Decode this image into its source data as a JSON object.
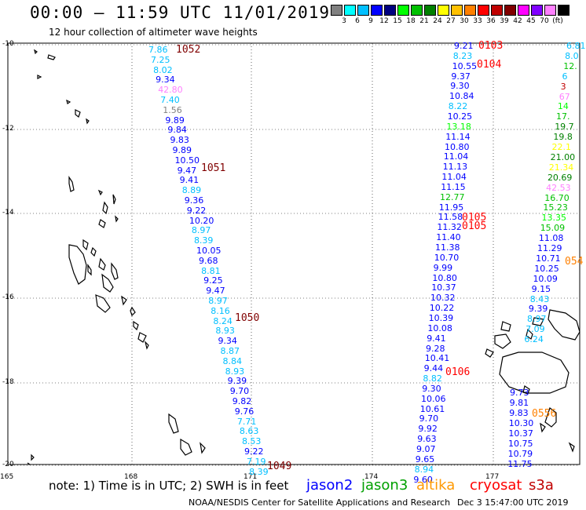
{
  "header": {
    "title": "00:00 – 11:59 UTC 11/01/2019",
    "subtitle": "12 hour collection of altimeter wave heights"
  },
  "colorbar": {
    "colors": [
      "#808080",
      "#00ffff",
      "#00bfff",
      "#0000ff",
      "#000080",
      "#00ff00",
      "#00c000",
      "#008000",
      "#ffff00",
      "#ffc000",
      "#ff8000",
      "#ff0000",
      "#c00000",
      "#800000",
      "#ff00ff",
      "#8000ff",
      "#ff80ff",
      "#000000"
    ],
    "labels": [
      "3",
      "6",
      "9",
      "12",
      "15",
      "18",
      "21",
      "24",
      "27",
      "30",
      "33",
      "36",
      "39",
      "42",
      "45",
      "70",
      "(ft)"
    ]
  },
  "axes": {
    "lat_labels": [
      "-10",
      "-12",
      "-14",
      "-16",
      "-18",
      "-20"
    ],
    "lon_labels": [
      "165",
      "168",
      "171",
      "174",
      "177"
    ]
  },
  "passes": [
    {
      "id": "1052",
      "color": "#800000"
    },
    {
      "id": "1051",
      "color": "#800000"
    },
    {
      "id": "1050",
      "color": "#800000"
    },
    {
      "id": "1049",
      "color": "#800000"
    },
    {
      "id": "0103",
      "color": "#ff0000"
    },
    {
      "id": "0104",
      "color": "#ff0000"
    },
    {
      "id": "0105",
      "color": "#ff0000"
    },
    {
      "id": "0105",
      "color": "#ff0000"
    },
    {
      "id": "0106",
      "color": "#ff0000"
    },
    {
      "id": "0556",
      "color": "#ff8000"
    },
    {
      "id": "054",
      "color": "#ff8000"
    }
  ],
  "track_left": [
    {
      "v": "7.86",
      "c": "#00bfff"
    },
    {
      "v": "7.25",
      "c": "#00bfff"
    },
    {
      "v": "8.02",
      "c": "#00bfff"
    },
    {
      "v": "9.34",
      "c": "#0000ff"
    },
    {
      "v": "42.80",
      "c": "#ff80ff"
    },
    {
      "v": "7.40",
      "c": "#00bfff"
    },
    {
      "v": "1.56",
      "c": "#808080"
    },
    {
      "v": "9.89",
      "c": "#0000ff"
    },
    {
      "v": "9.84",
      "c": "#0000ff"
    },
    {
      "v": "9.83",
      "c": "#0000ff"
    },
    {
      "v": "9.89",
      "c": "#0000ff"
    },
    {
      "v": "10.50",
      "c": "#0000ff"
    },
    {
      "v": "9.47",
      "c": "#0000ff"
    },
    {
      "v": "9.41",
      "c": "#0000ff"
    },
    {
      "v": "8.89",
      "c": "#00bfff"
    },
    {
      "v": "9.36",
      "c": "#0000ff"
    },
    {
      "v": "9.22",
      "c": "#0000ff"
    },
    {
      "v": "10.20",
      "c": "#0000ff"
    },
    {
      "v": "8.97",
      "c": "#00bfff"
    },
    {
      "v": "8.39",
      "c": "#00bfff"
    },
    {
      "v": "10.05",
      "c": "#0000ff"
    },
    {
      "v": "9.68",
      "c": "#0000ff"
    },
    {
      "v": "8.81",
      "c": "#00bfff"
    },
    {
      "v": "9.25",
      "c": "#0000ff"
    },
    {
      "v": "9.47",
      "c": "#0000ff"
    },
    {
      "v": "8.97",
      "c": "#00bfff"
    },
    {
      "v": "8.16",
      "c": "#00bfff"
    },
    {
      "v": "8.24",
      "c": "#00bfff"
    },
    {
      "v": "8.93",
      "c": "#00bfff"
    },
    {
      "v": "9.34",
      "c": "#0000ff"
    },
    {
      "v": "8.87",
      "c": "#00bfff"
    },
    {
      "v": "8.84",
      "c": "#00bfff"
    },
    {
      "v": "8.93",
      "c": "#00bfff"
    },
    {
      "v": "9.39",
      "c": "#0000ff"
    },
    {
      "v": "9.70",
      "c": "#0000ff"
    },
    {
      "v": "9.82",
      "c": "#0000ff"
    },
    {
      "v": "9.76",
      "c": "#0000ff"
    },
    {
      "v": "7.71",
      "c": "#00bfff"
    },
    {
      "v": "8.63",
      "c": "#00bfff"
    },
    {
      "v": "8.53",
      "c": "#00bfff"
    },
    {
      "v": "9.22",
      "c": "#0000ff"
    },
    {
      "v": "7.19",
      "c": "#00bfff"
    },
    {
      "v": "8.39",
      "c": "#00bfff"
    }
  ],
  "track_mid": [
    {
      "v": "9.21",
      "c": "#0000ff"
    },
    {
      "v": "8.23",
      "c": "#00bfff"
    },
    {
      "v": "10.55",
      "c": "#0000ff"
    },
    {
      "v": "9.37",
      "c": "#0000ff"
    },
    {
      "v": "9.30",
      "c": "#0000ff"
    },
    {
      "v": "10.84",
      "c": "#0000ff"
    },
    {
      "v": "8.22",
      "c": "#00bfff"
    },
    {
      "v": "10.25",
      "c": "#0000ff"
    },
    {
      "v": "13.18",
      "c": "#00ff00"
    },
    {
      "v": "11.14",
      "c": "#0000ff"
    },
    {
      "v": "10.80",
      "c": "#0000ff"
    },
    {
      "v": "11.04",
      "c": "#0000ff"
    },
    {
      "v": "11.13",
      "c": "#0000ff"
    },
    {
      "v": "11.04",
      "c": "#0000ff"
    },
    {
      "v": "11.15",
      "c": "#0000ff"
    },
    {
      "v": "12.77",
      "c": "#00c000"
    },
    {
      "v": "11.95",
      "c": "#0000ff"
    },
    {
      "v": "11.58",
      "c": "#0000ff"
    },
    {
      "v": "11.32",
      "c": "#0000ff"
    },
    {
      "v": "11.40",
      "c": "#0000ff"
    },
    {
      "v": "11.38",
      "c": "#0000ff"
    },
    {
      "v": "10.70",
      "c": "#0000ff"
    },
    {
      "v": "9.99",
      "c": "#0000ff"
    },
    {
      "v": "10.80",
      "c": "#0000ff"
    },
    {
      "v": "10.37",
      "c": "#0000ff"
    },
    {
      "v": "10.32",
      "c": "#0000ff"
    },
    {
      "v": "10.22",
      "c": "#0000ff"
    },
    {
      "v": "10.39",
      "c": "#0000ff"
    },
    {
      "v": "10.08",
      "c": "#0000ff"
    },
    {
      "v": "9.41",
      "c": "#0000ff"
    },
    {
      "v": "9.28",
      "c": "#0000ff"
    },
    {
      "v": "10.41",
      "c": "#0000ff"
    },
    {
      "v": "9.44",
      "c": "#0000ff"
    },
    {
      "v": "8.82",
      "c": "#00bfff"
    },
    {
      "v": "9.30",
      "c": "#0000ff"
    },
    {
      "v": "10.06",
      "c": "#0000ff"
    },
    {
      "v": "10.61",
      "c": "#0000ff"
    },
    {
      "v": "9.70",
      "c": "#0000ff"
    },
    {
      "v": "9.92",
      "c": "#0000ff"
    },
    {
      "v": "9.63",
      "c": "#0000ff"
    },
    {
      "v": "9.07",
      "c": "#0000ff"
    },
    {
      "v": "9.65",
      "c": "#0000ff"
    },
    {
      "v": "8.94",
      "c": "#00bfff"
    },
    {
      "v": "9.60",
      "c": "#0000ff"
    }
  ],
  "track_right": [
    {
      "v": "6.81",
      "c": "#00bfff"
    },
    {
      "v": "8.0",
      "c": "#00bfff"
    },
    {
      "v": "12.",
      "c": "#00c000"
    },
    {
      "v": "6",
      "c": "#00bfff"
    },
    {
      "v": "3",
      "c": "#c00000"
    },
    {
      "v": "67",
      "c": "#ff80ff"
    },
    {
      "v": "14",
      "c": "#00ff00"
    },
    {
      "v": "17.",
      "c": "#00c000"
    },
    {
      "v": "19.7",
      "c": "#008000"
    },
    {
      "v": "19.8",
      "c": "#008000"
    },
    {
      "v": "22.1",
      "c": "#ffff00"
    },
    {
      "v": "21.00",
      "c": "#008000"
    },
    {
      "v": "21.34",
      "c": "#ffff00"
    },
    {
      "v": "20.69",
      "c": "#008000"
    },
    {
      "v": "42.53",
      "c": "#ff80ff"
    },
    {
      "v": "16.70",
      "c": "#00c000"
    },
    {
      "v": "15.23",
      "c": "#00c000"
    },
    {
      "v": "13.35",
      "c": "#00ff00"
    },
    {
      "v": "15.09",
      "c": "#00c000"
    },
    {
      "v": "11.08",
      "c": "#0000ff"
    },
    {
      "v": "11.29",
      "c": "#0000ff"
    },
    {
      "v": "10.71",
      "c": "#0000ff"
    },
    {
      "v": "10.25",
      "c": "#0000ff"
    },
    {
      "v": "10.09",
      "c": "#0000ff"
    },
    {
      "v": "9.15",
      "c": "#0000ff"
    },
    {
      "v": "8.43",
      "c": "#00bfff"
    },
    {
      "v": "9.39",
      "c": "#0000ff"
    },
    {
      "v": "8.97",
      "c": "#00bfff"
    },
    {
      "v": "7.09",
      "c": "#00bfff"
    },
    {
      "v": "6.24",
      "c": "#00bfff"
    }
  ],
  "track_bottom": [
    {
      "v": "9.73",
      "c": "#0000ff"
    },
    {
      "v": "9.81",
      "c": "#0000ff"
    },
    {
      "v": "9.83",
      "c": "#0000ff"
    },
    {
      "v": "10.30",
      "c": "#0000ff"
    },
    {
      "v": "10.37",
      "c": "#0000ff"
    },
    {
      "v": "10.75",
      "c": "#0000ff"
    },
    {
      "v": "10.79",
      "c": "#0000ff"
    },
    {
      "v": "11.75",
      "c": "#0000ff"
    }
  ],
  "footer": {
    "note": "note: 1) Time is in UTC; 2) SWH is in feet",
    "legend": [
      {
        "label": "jason2",
        "color": "#0000ff"
      },
      {
        "label": "jason3",
        "color": "#00a000"
      },
      {
        "label": "altika",
        "color": "#ff9900"
      },
      {
        "label": "cryosat",
        "color": "#ff0000"
      },
      {
        "label": "s3a",
        "color": "#c00000"
      }
    ],
    "credit": "NOAA/NESDIS Center for Satellite Applications and Research",
    "timestamp": "Dec  3 15:47:00 UTC 2019"
  }
}
